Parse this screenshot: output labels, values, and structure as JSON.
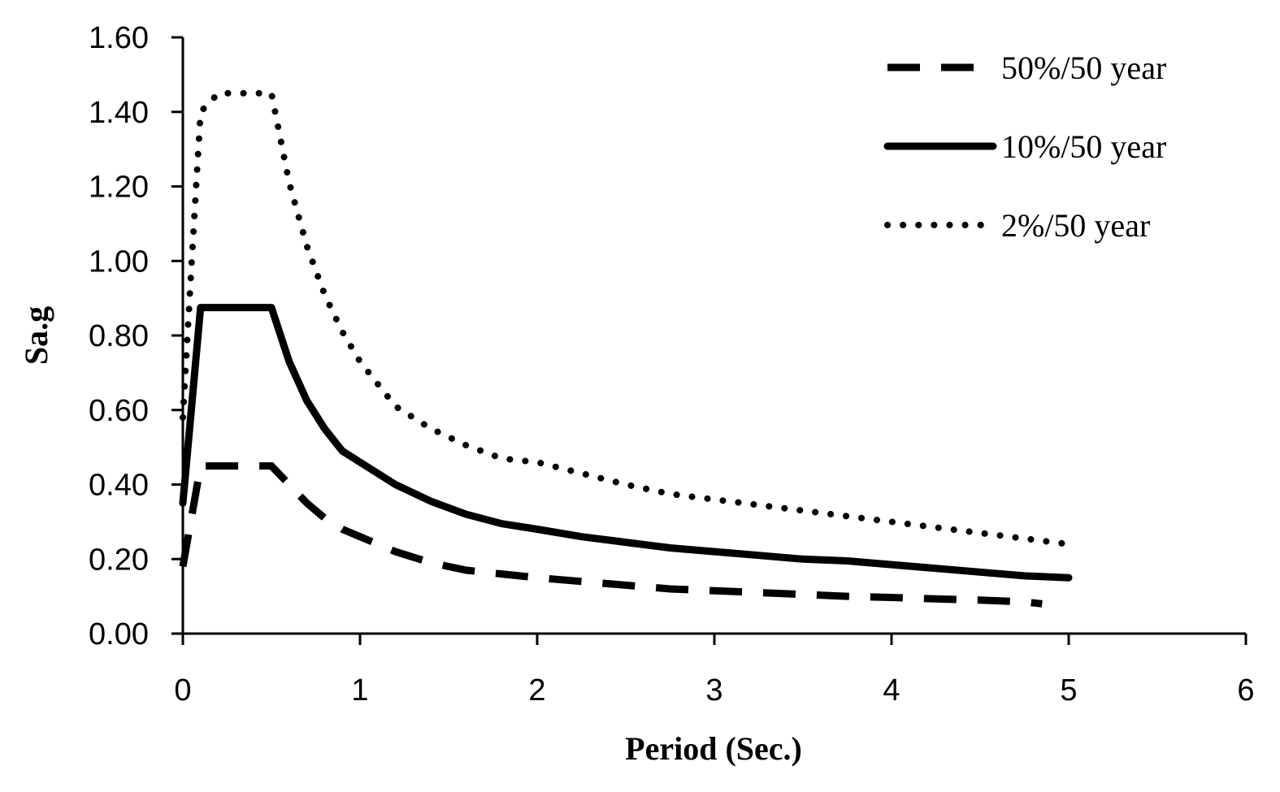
{
  "chart_data": {
    "type": "line",
    "title": "",
    "xlabel": "Period (Sec.)",
    "ylabel": "Sa.g",
    "xlim": [
      0,
      6
    ],
    "ylim": [
      0,
      1.6
    ],
    "xticks": [
      0,
      1,
      2,
      3,
      4,
      5,
      6
    ],
    "yticks": [
      0,
      0.2,
      0.4,
      0.6,
      0.8,
      1.0,
      1.2,
      1.4,
      1.6
    ],
    "xtick_labels": [
      "0",
      "1",
      "2",
      "3",
      "4",
      "5",
      "6"
    ],
    "ytick_labels": [
      "0.00",
      "0.20",
      "0.40",
      "0.60",
      "0.80",
      "1.00",
      "1.20",
      "1.40",
      "1.60"
    ],
    "grid": false,
    "legend_position": "top-right",
    "series": [
      {
        "name": "50%/50 year",
        "style": "dashed",
        "x": [
          0,
          0.1,
          0.2,
          0.3,
          0.4,
          0.5,
          0.6,
          0.7,
          0.8,
          0.9,
          1.0,
          1.2,
          1.4,
          1.6,
          1.8,
          2.0,
          2.25,
          2.5,
          2.75,
          3.0,
          3.25,
          3.5,
          3.75,
          4.0,
          4.25,
          4.5,
          4.75,
          4.85
        ],
        "y": [
          0.18,
          0.45,
          0.45,
          0.45,
          0.45,
          0.45,
          0.4,
          0.35,
          0.31,
          0.28,
          0.26,
          0.22,
          0.19,
          0.17,
          0.16,
          0.15,
          0.14,
          0.13,
          0.12,
          0.115,
          0.11,
          0.105,
          0.1,
          0.097,
          0.093,
          0.09,
          0.085,
          0.08
        ]
      },
      {
        "name": "10%/50 year",
        "style": "solid",
        "x": [
          0,
          0.1,
          0.2,
          0.3,
          0.4,
          0.5,
          0.6,
          0.7,
          0.8,
          0.9,
          1.0,
          1.2,
          1.4,
          1.6,
          1.8,
          2.0,
          2.25,
          2.5,
          2.75,
          3.0,
          3.25,
          3.5,
          3.75,
          4.0,
          4.25,
          4.5,
          4.75,
          5.0
        ],
        "y": [
          0.35,
          0.875,
          0.875,
          0.875,
          0.875,
          0.875,
          0.73,
          0.625,
          0.55,
          0.49,
          0.46,
          0.4,
          0.355,
          0.32,
          0.295,
          0.28,
          0.26,
          0.245,
          0.23,
          0.22,
          0.21,
          0.2,
          0.195,
          0.185,
          0.175,
          0.165,
          0.155,
          0.15
        ]
      },
      {
        "name": "2%/50 year",
        "style": "dotted",
        "x": [
          0,
          0.05,
          0.1,
          0.2,
          0.3,
          0.4,
          0.5,
          0.6,
          0.7,
          0.8,
          0.9,
          1.0,
          1.2,
          1.4,
          1.6,
          1.8,
          2.0,
          2.25,
          2.5,
          2.75,
          3.0,
          3.25,
          3.5,
          3.75,
          4.0,
          4.25,
          4.5,
          4.75,
          5.0
        ],
        "y": [
          0.58,
          1.0,
          1.4,
          1.45,
          1.45,
          1.45,
          1.45,
          1.21,
          1.04,
          0.91,
          0.81,
          0.73,
          0.61,
          0.55,
          0.505,
          0.47,
          0.46,
          0.43,
          0.4,
          0.375,
          0.36,
          0.345,
          0.33,
          0.315,
          0.3,
          0.285,
          0.27,
          0.255,
          0.24
        ]
      }
    ]
  }
}
